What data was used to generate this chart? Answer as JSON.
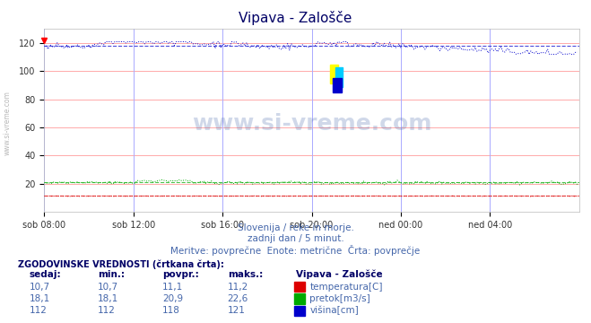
{
  "title": "Vipava - Zalošče",
  "subtitle1": "Slovenija / reke in morje.",
  "subtitle2": "zadnji dan / 5 minut.",
  "subtitle3": "Meritve: povprečne  Enote: metrične  Črta: povprečje",
  "watermark": "www.si-vreme.com",
  "xlabel_ticks": [
    "sob 08:00",
    "sob 12:00",
    "sob 16:00",
    "sob 20:00",
    "ned 00:00",
    "ned 04:00"
  ],
  "ylabel_values": [
    20,
    40,
    60,
    80,
    100,
    120
  ],
  "ylim": [
    0,
    130
  ],
  "xlim": [
    0,
    288
  ],
  "tick_positions": [
    0,
    48,
    96,
    144,
    192,
    240
  ],
  "background_color": "#ffffff",
  "plot_bg_color": "#ffffff",
  "grid_color_h": "#ffaaaa",
  "grid_color_v": "#aaaaff",
  "title_color": "#000066",
  "subtitle_color": "#4466aa",
  "watermark_color": "#4466aa",
  "watermark_alpha": 0.25,
  "left_label_color": "#888888",
  "table_header_color": "#000066",
  "table_data_color": "#4466aa",
  "temp_color": "#dd0000",
  "flow_color": "#00aa00",
  "height_color": "#0000cc",
  "temp_avg": 11.1,
  "flow_avg": 20.9,
  "height_avg": 118,
  "temp_current": "10,7",
  "temp_min": "10,7",
  "temp_avg_str": "11,1",
  "temp_max": "11,2",
  "flow_current": "18,1",
  "flow_min": "18,1",
  "flow_avg_str": "20,9",
  "flow_max": "22,6",
  "height_current": "112",
  "height_min": "112",
  "height_avg_str": "118",
  "height_max": "121",
  "n_points": 288
}
